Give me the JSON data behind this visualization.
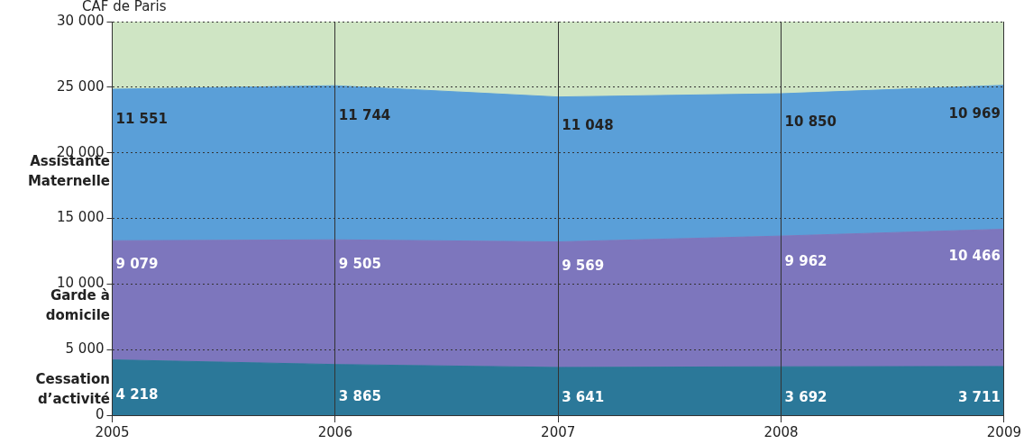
{
  "chart_data": {
    "type": "area",
    "stacked": true,
    "ylabel": "CAF de Paris",
    "x": [
      2005,
      2006,
      2007,
      2008,
      2009
    ],
    "xlim": [
      2005,
      2009
    ],
    "xticks": [
      2005,
      2006,
      2007,
      2008,
      2009
    ],
    "ylim": [
      0,
      30000
    ],
    "yticks": [
      {
        "value": 0,
        "label": "0"
      },
      {
        "value": 5000,
        "label": "5 000"
      },
      {
        "value": 10000,
        "label": "10 000"
      },
      {
        "value": 15000,
        "label": "15 000"
      },
      {
        "value": 20000,
        "label": "20 000"
      },
      {
        "value": 25000,
        "label": "25 000"
      },
      {
        "value": 30000,
        "label": "30 000"
      }
    ],
    "grid": true,
    "legend": false,
    "bands": [
      {
        "axis": "x",
        "from": 2005,
        "to": 2009,
        "color": "#cfe5c4"
      }
    ],
    "series": [
      {
        "name": "Cessation d’activité",
        "color": "#2b7899",
        "values": [
          4218,
          3865,
          3641,
          3692,
          3711
        ],
        "value_labels": [
          "4 218",
          "3 865",
          "3 641",
          "3 692",
          "3 711"
        ]
      },
      {
        "name": "Garde à domicile",
        "color": "#7d76bd",
        "values": [
          9079,
          9505,
          9569,
          9962,
          10466
        ],
        "value_labels": [
          "9 079",
          "9 505",
          "9 569",
          "9 962",
          "10 466"
        ]
      },
      {
        "name": "Assistante Maternelle",
        "color": "#5a9fd8",
        "values": [
          11551,
          11744,
          11048,
          10850,
          10969
        ],
        "value_labels": [
          "11 551",
          "11 744",
          "11 048",
          "10 850",
          "10 969"
        ]
      }
    ]
  }
}
